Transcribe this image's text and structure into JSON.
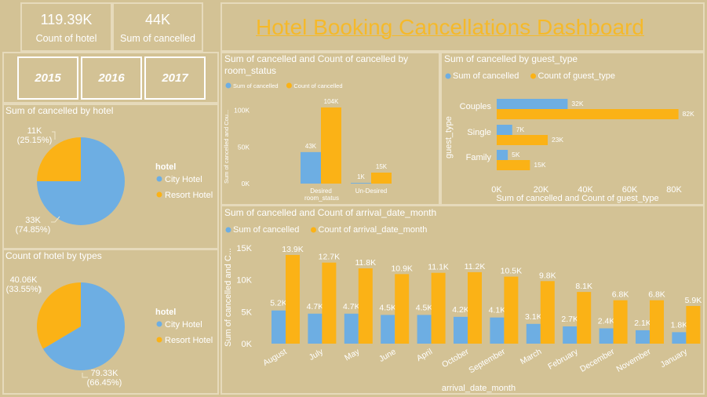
{
  "kpis": [
    {
      "value": "119.39K",
      "label": "Count of hotel"
    },
    {
      "value": "44K",
      "label": "Sum of cancelled"
    }
  ],
  "title": "Hotel Booking Cancellations Dashboard",
  "years": [
    "2015",
    "2016",
    "2017"
  ],
  "colors": {
    "blue": "#6daee3",
    "orange": "#fbb216",
    "bg": "#d3c295",
    "text": "#ffffff",
    "title": "#f5b92a"
  },
  "chart_data": [
    {
      "id": "pie1",
      "type": "pie",
      "title": "Sum of cancelled by hotel",
      "legend_title": "hotel",
      "slices": [
        {
          "name": "City Hotel",
          "value": 33000,
          "label": "33K",
          "pct": "(74.85%)"
        },
        {
          "name": "Resort Hotel",
          "value": 11000,
          "label": "11K",
          "pct": "(25.15%)"
        }
      ]
    },
    {
      "id": "pie2",
      "type": "pie",
      "title": "Count of hotel by types",
      "legend_title": "hotel",
      "slices": [
        {
          "name": "City Hotel",
          "value": 79330,
          "label": "79.33K",
          "pct": "(66.45%)"
        },
        {
          "name": "Resort Hotel",
          "value": 40060,
          "label": "40.06K",
          "pct": "(33.55%)"
        }
      ]
    },
    {
      "id": "room",
      "type": "bar",
      "title": "Sum of cancelled and Count of cancelled by room_status",
      "xlabel": "room_status",
      "ylabel": "Sum of cancelled and Cou...",
      "categories": [
        "Desired",
        "Un-Desired"
      ],
      "series": [
        {
          "name": "Sum of cancelled",
          "values": [
            43000,
            1000
          ],
          "labels": [
            "43K",
            "1K"
          ]
        },
        {
          "name": "Count of cancelled",
          "values": [
            104000,
            15000
          ],
          "labels": [
            "104K",
            "15K"
          ]
        }
      ],
      "yticks": [
        0,
        50000,
        100000
      ],
      "ytick_labels": [
        "0K",
        "50K",
        "100K"
      ],
      "ylim": [
        0,
        120000
      ]
    },
    {
      "id": "guest",
      "type": "bar",
      "orientation": "horizontal",
      "title": "Sum of cancelled by guest_type",
      "xlabel": "Sum of cancelled and Count of guest_type",
      "ylabel": "guest_type",
      "categories": [
        "Couples",
        "Single",
        "Family"
      ],
      "series": [
        {
          "name": "Sum of cancelled",
          "values": [
            32000,
            7000,
            5000
          ],
          "labels": [
            "32K",
            "7K",
            "5K"
          ]
        },
        {
          "name": "Count of guest_type",
          "values": [
            82000,
            23000,
            15000
          ],
          "labels": [
            "82K",
            "23K",
            "15K"
          ]
        }
      ],
      "xticks": [
        0,
        20000,
        40000,
        60000,
        80000
      ],
      "xtick_labels": [
        "0K",
        "20K",
        "40K",
        "60K",
        "80K"
      ],
      "xlim": [
        0,
        80000
      ]
    },
    {
      "id": "month",
      "type": "bar",
      "title": "Sum of cancelled and Count of arrival_date_month",
      "xlabel": "arrival_date_month",
      "ylabel": "Sum of cancelled and C...",
      "categories": [
        "August",
        "July",
        "May",
        "June",
        "April",
        "October",
        "September",
        "March",
        "February",
        "December",
        "November",
        "January"
      ],
      "series": [
        {
          "name": "Sum of cancelled",
          "values": [
            5200,
            4700,
            4700,
            4500,
            4500,
            4200,
            4100,
            3100,
            2700,
            2400,
            2100,
            1800
          ],
          "labels": [
            "5.2K",
            "4.7K",
            "4.7K",
            "4.5K",
            "4.5K",
            "4.2K",
            "4.1K",
            "3.1K",
            "2.7K",
            "2.4K",
            "2.1K",
            "1.8K"
          ]
        },
        {
          "name": "Count of arrival_date_month",
          "values": [
            13900,
            12700,
            11800,
            10900,
            11100,
            11200,
            10500,
            9800,
            8100,
            6800,
            6800,
            5900
          ],
          "labels": [
            "13.9K",
            "12.7K",
            "11.8K",
            "10.9K",
            "11.1K",
            "11.2K",
            "10.5K",
            "9.8K",
            "8.1K",
            "6.8K",
            "6.8K",
            "5.9K"
          ]
        }
      ],
      "yticks": [
        0,
        5000,
        10000,
        15000
      ],
      "ytick_labels": [
        "0K",
        "5K",
        "10K",
        "15K"
      ],
      "ylim": [
        0,
        15000
      ]
    }
  ]
}
